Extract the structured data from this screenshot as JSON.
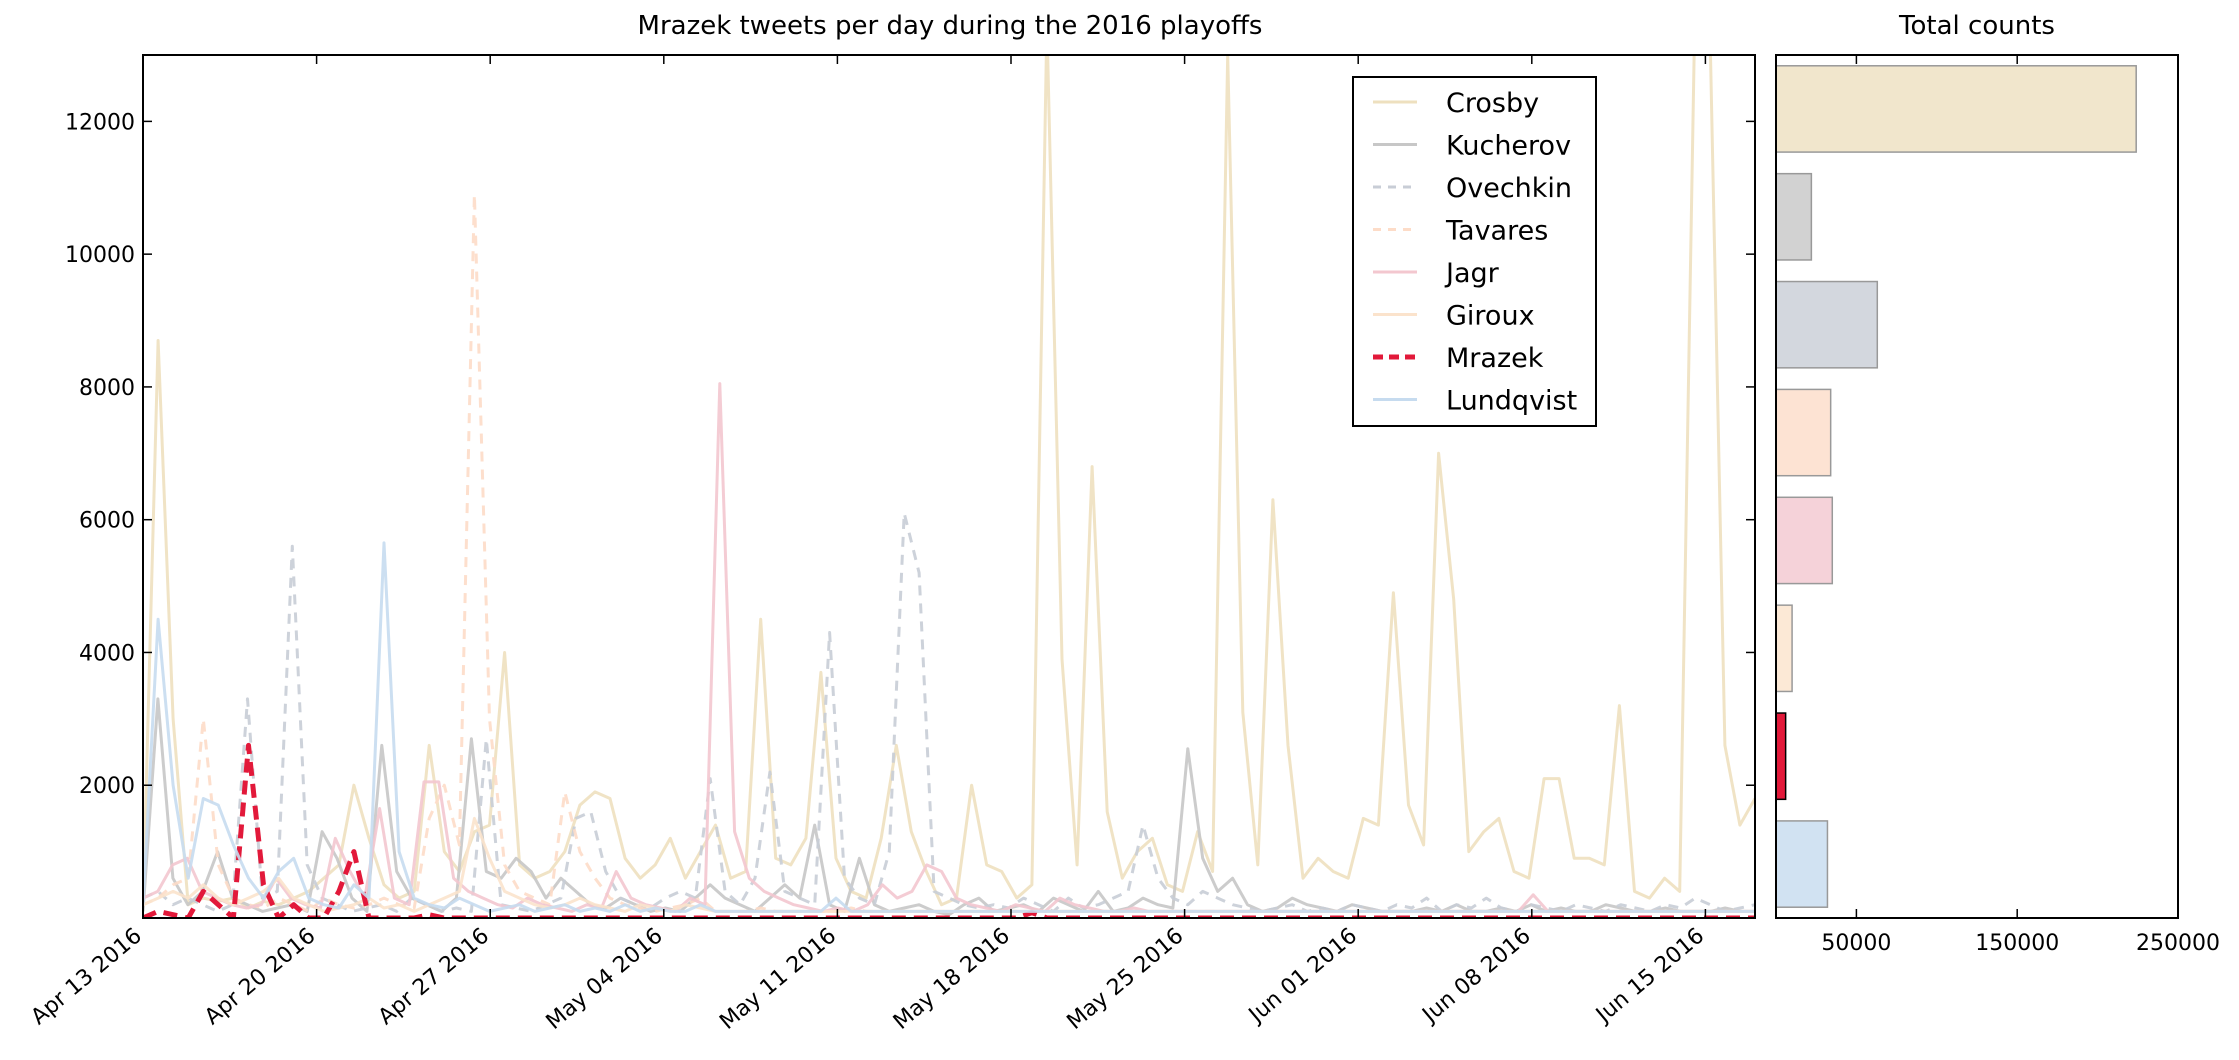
{
  "chart_data": [
    {
      "type": "line",
      "title": "Mrazek tweets per day during the 2016 playoffs",
      "xlabel": "",
      "ylabel": "",
      "x_start": "2016-04-13",
      "x_end": "2016-06-17",
      "xlim": [
        "2016-04-13",
        "2016-06-17"
      ],
      "ylim": [
        0,
        13000
      ],
      "x_ticks": [
        {
          "date": "2016-04-13",
          "label": "Apr 13 2016"
        },
        {
          "date": "2016-04-20",
          "label": "Apr 20 2016"
        },
        {
          "date": "2016-04-27",
          "label": "Apr 27 2016"
        },
        {
          "date": "2016-05-04",
          "label": "May 04 2016"
        },
        {
          "date": "2016-05-11",
          "label": "May 11 2016"
        },
        {
          "date": "2016-05-18",
          "label": "May 18 2016"
        },
        {
          "date": "2016-05-25",
          "label": "May 25 2016"
        },
        {
          "date": "2016-06-01",
          "label": "Jun 01 2016"
        },
        {
          "date": "2016-06-08",
          "label": "Jun 08 2016"
        },
        {
          "date": "2016-06-15",
          "label": "Jun 15 2016"
        }
      ],
      "y_ticks": [
        2000,
        4000,
        6000,
        8000,
        10000,
        12000
      ],
      "grid": false,
      "legend": "upper-right",
      "series": [
        {
          "name": "Crosby",
          "color": "#eee0bf",
          "dash": "solid",
          "values": [
            150,
            8700,
            3000,
            200,
            300,
            250,
            300,
            150,
            250,
            200,
            300,
            400,
            600,
            800,
            2000,
            1200,
            500,
            300,
            400,
            2600,
            1000,
            700,
            1300,
            1400,
            4000,
            800,
            600,
            700,
            1000,
            1700,
            1900,
            1800,
            900,
            600,
            800,
            1200,
            600,
            1000,
            1400,
            600,
            700,
            4500,
            900,
            800,
            1200,
            3700,
            900,
            400,
            300,
            1200,
            2600,
            1300,
            700,
            200,
            300,
            2000,
            800,
            700,
            300,
            500,
            13500,
            3900,
            800,
            6800,
            1600,
            600,
            1000,
            1200,
            500,
            400,
            1300,
            700,
            13000,
            3100,
            800,
            6300,
            2600,
            600,
            900,
            700,
            600,
            1500,
            1400,
            4900,
            1700,
            1100,
            7000,
            4800,
            1000,
            1300,
            1500,
            700,
            600,
            2100,
            2100,
            900,
            900,
            800,
            3200,
            400,
            300,
            600,
            400,
            13500,
            13500,
            2600,
            1400,
            1800
          ]
        },
        {
          "name": "Kucherov",
          "color": "#c7c7c7",
          "dash": "solid",
          "values": [
            100,
            3300,
            600,
            200,
            400,
            1000,
            300,
            200,
            100,
            150,
            200,
            100,
            1300,
            900,
            300,
            100,
            2600,
            700,
            300,
            200,
            100,
            300,
            2700,
            700,
            600,
            900,
            700,
            300,
            600,
            400,
            200,
            150,
            300,
            200,
            100,
            150,
            100,
            300,
            500,
            300,
            200,
            100,
            300,
            500,
            300,
            1400,
            200,
            100,
            900,
            200,
            100,
            150,
            200,
            100,
            50,
            200,
            300,
            100,
            150,
            200,
            100,
            300,
            200,
            100,
            400,
            100,
            150,
            300,
            200,
            150,
            2550,
            900,
            400,
            600,
            200,
            100,
            150,
            300,
            200,
            150,
            100,
            200,
            150,
            100,
            100,
            100,
            150,
            100,
            200,
            100,
            100,
            150,
            100,
            200,
            100,
            150,
            100,
            100,
            200,
            150,
            100,
            100,
            150,
            100,
            100,
            100,
            150,
            100,
            100
          ]
        },
        {
          "name": "Ovechkin",
          "color": "#c8cdd6",
          "dash": "dashed",
          "values": [
            300,
            400,
            200,
            300,
            200,
            100,
            200,
            3300,
            300,
            400,
            5600,
            800,
            300,
            200,
            100,
            150,
            200,
            100,
            300,
            200,
            100,
            150,
            100,
            2700,
            200,
            150,
            100,
            200,
            300,
            1500,
            1600,
            700,
            300,
            200,
            150,
            300,
            400,
            300,
            2100,
            400,
            200,
            600,
            2200,
            400,
            300,
            200,
            4300,
            600,
            300,
            200,
            1000,
            6100,
            5200,
            400,
            300,
            200,
            150,
            200,
            150,
            300,
            200,
            100,
            300,
            150,
            200,
            300,
            400,
            1400,
            600,
            300,
            200,
            400,
            300,
            200,
            150,
            100,
            150,
            200,
            100,
            150,
            100,
            200,
            150,
            100,
            200,
            150,
            300,
            100,
            200,
            150,
            300,
            150,
            100,
            200,
            150,
            100,
            200,
            150,
            100,
            200,
            150,
            100,
            200,
            150,
            300,
            200,
            100,
            150,
            200
          ]
        },
        {
          "name": "Tavares",
          "color": "#fddcc8",
          "dash": "dashed",
          "values": [
            200,
            300,
            500,
            600,
            3000,
            800,
            300,
            200,
            150,
            300,
            200,
            100,
            300,
            200,
            150,
            200,
            300,
            200,
            150,
            1500,
            2000,
            1100,
            10900,
            3000,
            800,
            400,
            300,
            200,
            1900,
            1000,
            600,
            300,
            200,
            150,
            100,
            150,
            200,
            300,
            100,
            100,
            100,
            150,
            100,
            100,
            100,
            100,
            100,
            150,
            100,
            100,
            100,
            100,
            100,
            100,
            100,
            100,
            100,
            100,
            100,
            100,
            100,
            100,
            100,
            100,
            100,
            100,
            100,
            100,
            100,
            100,
            100,
            100,
            100,
            100,
            100,
            100,
            100,
            100,
            100,
            100,
            100,
            100,
            100,
            100,
            100,
            100,
            100,
            100,
            100,
            100,
            100,
            100,
            100,
            100,
            100,
            100,
            100,
            100,
            100,
            100,
            100,
            100,
            100,
            100,
            100,
            100,
            100,
            100
          ]
        },
        {
          "name": "Jagr",
          "color": "#f3c7cf",
          "dash": "solid",
          "values": [
            300,
            400,
            800,
            900,
            400,
            300,
            200,
            150,
            200,
            600,
            300,
            200,
            150,
            1200,
            700,
            300,
            1650,
            300,
            200,
            2050,
            2050,
            600,
            400,
            300,
            200,
            150,
            300,
            200,
            150,
            100,
            200,
            150,
            700,
            300,
            200,
            150,
            100,
            300,
            200,
            8050,
            1300,
            600,
            400,
            300,
            200,
            150,
            100,
            150,
            100,
            200,
            500,
            300,
            400,
            800,
            700,
            300,
            200,
            150,
            100,
            200,
            150,
            100,
            300,
            200,
            150,
            100,
            100,
            150,
            100,
            100,
            100,
            100,
            100,
            100,
            100,
            100,
            100,
            100,
            100,
            100,
            100,
            100,
            100,
            100,
            100,
            100,
            100,
            100,
            100,
            100,
            100,
            100,
            100,
            100,
            350,
            100,
            100,
            100,
            100,
            100,
            100,
            100,
            100,
            100,
            100,
            100,
            100,
            100,
            100,
            100
          ]
        },
        {
          "name": "Giroux",
          "color": "#fbe3cc",
          "dash": "solid",
          "values": [
            200,
            300,
            400,
            300,
            500,
            300,
            200,
            300,
            400,
            600,
            300,
            200,
            100,
            150,
            200,
            300,
            150,
            200,
            100,
            200,
            300,
            400,
            1500,
            900,
            400,
            300,
            200,
            150,
            200,
            300,
            200,
            150,
            100,
            200,
            150,
            100,
            200,
            150,
            100,
            100,
            100,
            100,
            100,
            100,
            100,
            100,
            100,
            100,
            100,
            100,
            100,
            100,
            100,
            100,
            100,
            100,
            100,
            100,
            100,
            100,
            100,
            100,
            100,
            100,
            100,
            100,
            100,
            100,
            100,
            100,
            100,
            100,
            100,
            100,
            100,
            100,
            100,
            100,
            100,
            100,
            100,
            100,
            100,
            100,
            100,
            100,
            100,
            100,
            100,
            100,
            100,
            100,
            100,
            100,
            100,
            100,
            100,
            100,
            100,
            100,
            100,
            100,
            100,
            100,
            100,
            100,
            100,
            100
          ]
        },
        {
          "name": "Mrazek",
          "color": "#e2193a",
          "dash": "dashed",
          "values": [
            0,
            100,
            50,
            0,
            400,
            200,
            0,
            2600,
            500,
            0,
            200,
            0,
            0,
            400,
            1000,
            0,
            0,
            0,
            0,
            50,
            0,
            0,
            0,
            0,
            0,
            0,
            0,
            0,
            0,
            0,
            0,
            0,
            0,
            0,
            0,
            0,
            0,
            0,
            0,
            0,
            0,
            0,
            0,
            0,
            0,
            0,
            0,
            0,
            0,
            0,
            0,
            0,
            0,
            0,
            0,
            0,
            0,
            0,
            0,
            80,
            0,
            0,
            0,
            0,
            0,
            0,
            0,
            0,
            0,
            0,
            0,
            0,
            0,
            0,
            0,
            0,
            0,
            0,
            0,
            0,
            0,
            0,
            0,
            0,
            0,
            0,
            0,
            0,
            0,
            0,
            0,
            0,
            0,
            0,
            0,
            0,
            0,
            0,
            0,
            0,
            0,
            0,
            0,
            0,
            0,
            0,
            0,
            0
          ]
        },
        {
          "name": "Lundqvist",
          "color": "#c6dbef",
          "dash": "solid",
          "values": [
            200,
            4500,
            2000,
            600,
            1800,
            1700,
            1100,
            600,
            300,
            700,
            900,
            300,
            200,
            150,
            500,
            300,
            5650,
            1000,
            300,
            200,
            150,
            300,
            200,
            100,
            150,
            200,
            100,
            150,
            200,
            100,
            150,
            100,
            200,
            100,
            150,
            100,
            100,
            200,
            100,
            100,
            100,
            100,
            100,
            100,
            100,
            100,
            300,
            100,
            100,
            100,
            100,
            100,
            100,
            100,
            100,
            100,
            100,
            100,
            100,
            100,
            100,
            100,
            100,
            100,
            100,
            100,
            100,
            100,
            100,
            100,
            100,
            100,
            100,
            100,
            100,
            100,
            100,
            100,
            100,
            100,
            100,
            100,
            100,
            100,
            100,
            100,
            100,
            100,
            100,
            100,
            100,
            100,
            100,
            100,
            100,
            100,
            100,
            100,
            100,
            100,
            100,
            100,
            100,
            100,
            100,
            100,
            100,
            100
          ]
        }
      ]
    },
    {
      "type": "bar",
      "orientation": "horizontal",
      "title": "Total counts",
      "xlabel": "",
      "ylabel": "",
      "xlim": [
        0,
        250000
      ],
      "x_ticks": [
        50000,
        150000,
        250000
      ],
      "categories": [
        "Crosby",
        "Kucherov",
        "Ovechkin",
        "Tavares",
        "Jagr",
        "Giroux",
        "Mrazek",
        "Lundqvist"
      ],
      "values": [
        224000,
        22000,
        63000,
        34000,
        35000,
        10000,
        6000,
        32000
      ],
      "colors": [
        "#eee0bf",
        "#c7c7c7",
        "#c8cdd6",
        "#fddcc8",
        "#f3c7cf",
        "#fbe3cc",
        "#e2193a",
        "#c6dbef"
      ]
    }
  ]
}
